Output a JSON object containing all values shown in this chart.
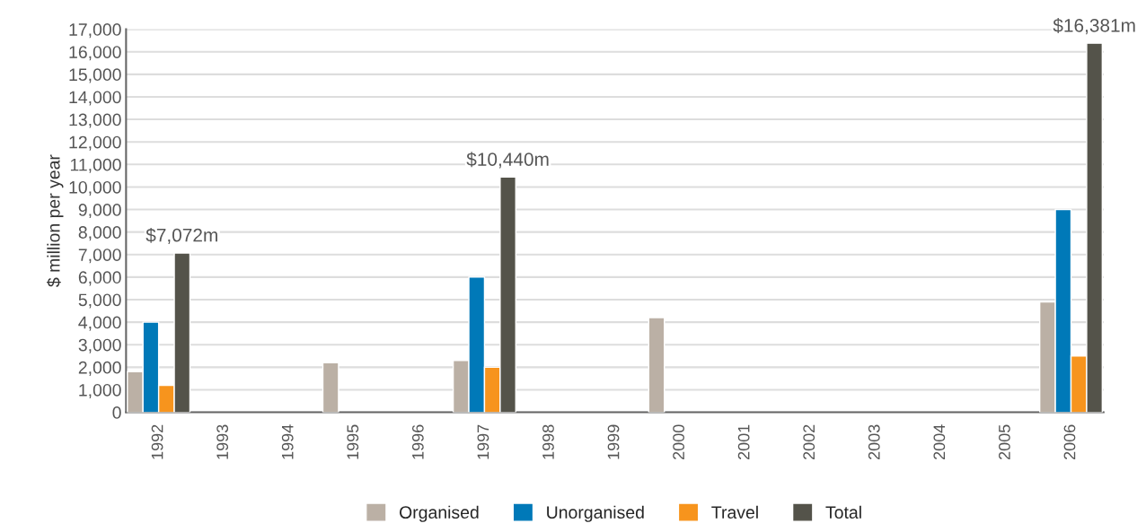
{
  "chart_data": {
    "type": "bar",
    "ylabel": "$ million per year",
    "categories": [
      "1992",
      "1993",
      "1994",
      "1995",
      "1996",
      "1997",
      "1998",
      "1999",
      "2000",
      "2001",
      "2002",
      "2003",
      "2004",
      "2005",
      "2006"
    ],
    "series": [
      {
        "name": "Organised",
        "color": "#bbb0a5",
        "values": [
          1800,
          null,
          null,
          2200,
          null,
          2300,
          null,
          null,
          4200,
          null,
          null,
          null,
          null,
          null,
          4900
        ]
      },
      {
        "name": "Unorganised",
        "color": "#0079b8",
        "values": [
          4000,
          null,
          null,
          null,
          null,
          6000,
          null,
          null,
          null,
          null,
          null,
          null,
          null,
          null,
          9000
        ]
      },
      {
        "name": "Travel",
        "color": "#f7941d",
        "values": [
          1200,
          null,
          null,
          null,
          null,
          2000,
          null,
          null,
          null,
          null,
          null,
          null,
          null,
          null,
          2500
        ]
      },
      {
        "name": "Total",
        "color": "#54534a",
        "values": [
          7072,
          null,
          null,
          null,
          null,
          10440,
          null,
          null,
          null,
          null,
          null,
          null,
          null,
          null,
          16381
        ],
        "value_labels": [
          "$7,072m",
          null,
          null,
          null,
          null,
          "$10,440m",
          null,
          null,
          null,
          null,
          null,
          null,
          null,
          null,
          "$16,381m"
        ]
      }
    ],
    "ylim": [
      0,
      17000
    ],
    "yticks": [
      0,
      {
        "value": 1000,
        "label": "1,000"
      },
      {
        "value": 2000,
        "label": "2,000"
      },
      {
        "value": 3000,
        "label": "3,000"
      },
      {
        "value": 4000,
        "label": "4,000"
      },
      {
        "value": 5000,
        "label": "5,000"
      },
      {
        "value": 6000,
        "label": "6,000"
      },
      {
        "value": 7000,
        "label": "7,000"
      },
      {
        "value": 8000,
        "label": "8,000"
      },
      {
        "value": 9000,
        "label": "9,000"
      },
      {
        "value": 10000,
        "label": "10,000"
      },
      {
        "value": 11000,
        "label": "11,000"
      },
      {
        "value": 12000,
        "label": "12,000"
      },
      {
        "value": 13000,
        "label": "13,000"
      },
      {
        "value": 14000,
        "label": "14,000"
      },
      {
        "value": 15000,
        "label": "15,000"
      },
      {
        "value": 16000,
        "label": "16,000"
      },
      {
        "value": 17000,
        "label": "17,000"
      }
    ],
    "grid": "y",
    "legend": "bottom"
  }
}
